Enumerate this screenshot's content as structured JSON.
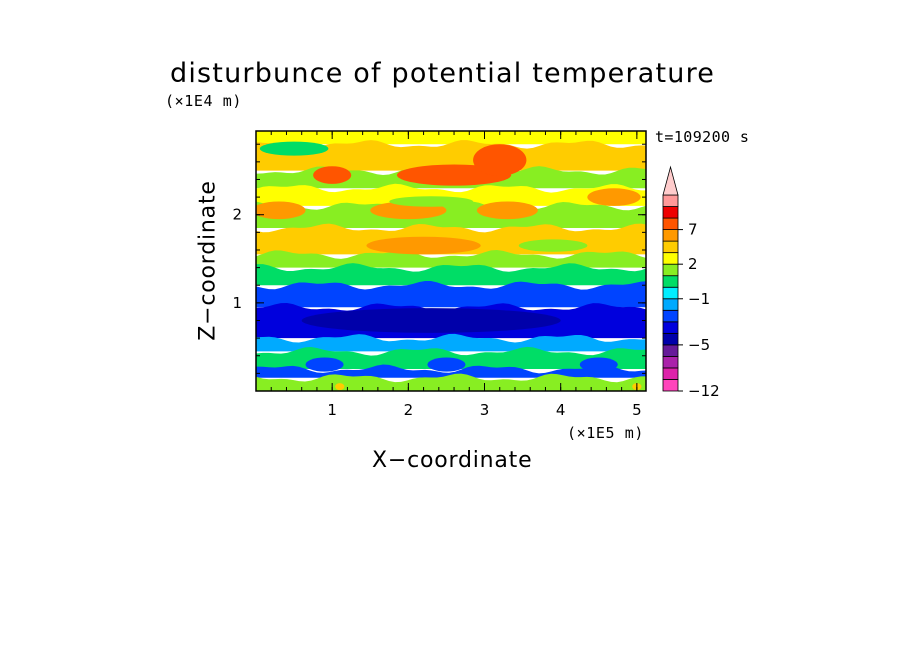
{
  "chart_data": {
    "type": "heatmap",
    "title": "disturbunce of potential temperature",
    "xlabel": "X−coordinate",
    "ylabel": "Z−coordinate",
    "x_multiplier": "(×1E5 m)",
    "y_multiplier": "(×1E4 m)",
    "time_label": "t=109200 s",
    "xlim": [
      0,
      5.12
    ],
    "ylim": [
      0,
      2.95
    ],
    "x_ticks": [
      1,
      2,
      3,
      4,
      5
    ],
    "x_tick_labels": [
      "1",
      "2",
      "3",
      "4",
      "5"
    ],
    "y_ticks": [
      1,
      2
    ],
    "y_tick_labels": [
      "1",
      "2"
    ],
    "grid": false,
    "colorbar": {
      "labels": [
        "−12",
        "−5",
        "−1",
        "2",
        "7"
      ],
      "label_levels": [
        -12,
        -5,
        -1,
        2,
        7
      ],
      "levels": [
        -12,
        -10,
        -8,
        -6,
        -5,
        -4,
        -3,
        -2,
        -1,
        0,
        1,
        2,
        3,
        5,
        7,
        9,
        11
      ],
      "colors": [
        "#ff44bb",
        "#dd22aa",
        "#aa22aa",
        "#661a99",
        "#0000aa",
        "#0000dd",
        "#0044ff",
        "#00aaff",
        "#00eeff",
        "#00dd66",
        "#88ee22",
        "#ffff00",
        "#ffcc00",
        "#ff9900",
        "#ff5500",
        "#ee0000",
        "#ff9999",
        "#ffcccc"
      ],
      "extend": "max"
    },
    "field_rows": [
      {
        "z_top": 2.95,
        "z_bottom": 2.8,
        "value": 1.0,
        "note_value_right": 0.0
      },
      {
        "z_top": 2.8,
        "z_bottom": 2.5,
        "value": 2.5
      },
      {
        "z_top": 2.5,
        "z_bottom": 2.3,
        "value": 0.5
      },
      {
        "z_top": 2.3,
        "z_bottom": 2.1,
        "value": 1.5
      },
      {
        "z_top": 2.1,
        "z_bottom": 1.85,
        "value": 0.5
      },
      {
        "z_top": 1.85,
        "z_bottom": 1.55,
        "value": 2.0
      },
      {
        "z_top": 1.55,
        "z_bottom": 1.4,
        "value": 0.5
      },
      {
        "z_top": 1.4,
        "z_bottom": 1.2,
        "value": -1.0
      },
      {
        "z_top": 1.2,
        "z_bottom": 0.95,
        "value": -3.5
      },
      {
        "z_top": 0.95,
        "z_bottom": 0.6,
        "value": -4.5
      },
      {
        "z_top": 0.6,
        "z_bottom": 0.45,
        "value": -2.5
      },
      {
        "z_top": 0.45,
        "z_bottom": 0.25,
        "value": -1.0
      },
      {
        "z_top": 0.25,
        "z_bottom": 0.15,
        "value": -3.5
      },
      {
        "z_top": 0.15,
        "z_bottom": 0.0,
        "value": 0.5
      }
    ],
    "features": [
      {
        "x": 2.6,
        "z": 2.45,
        "value": 5.0,
        "rx": 0.75,
        "rz": 0.12
      },
      {
        "x": 3.2,
        "z": 2.62,
        "value": 5.0,
        "rx": 0.35,
        "rz": 0.18
      },
      {
        "x": 1.0,
        "z": 2.45,
        "value": 5.0,
        "rx": 0.25,
        "rz": 0.1
      },
      {
        "x": 0.3,
        "z": 2.05,
        "value": 3.0,
        "rx": 0.35,
        "rz": 0.1
      },
      {
        "x": 2.0,
        "z": 2.05,
        "value": 3.0,
        "rx": 0.5,
        "rz": 0.1
      },
      {
        "x": 3.3,
        "z": 2.05,
        "value": 3.0,
        "rx": 0.4,
        "rz": 0.1
      },
      {
        "x": 4.7,
        "z": 2.2,
        "value": 3.0,
        "rx": 0.35,
        "rz": 0.1
      },
      {
        "x": 2.2,
        "z": 1.65,
        "value": 3.0,
        "rx": 0.75,
        "rz": 0.1
      },
      {
        "x": 0.5,
        "z": 2.75,
        "value": -0.5,
        "rx": 0.45,
        "rz": 0.08
      },
      {
        "x": 2.3,
        "z": 2.15,
        "value": 0.5,
        "rx": 0.55,
        "rz": 0.06
      },
      {
        "x": 3.9,
        "z": 1.65,
        "value": 0.5,
        "rx": 0.45,
        "rz": 0.07
      },
      {
        "x": 2.3,
        "z": 0.8,
        "value": -5.5,
        "rx": 1.7,
        "rz": 0.14
      },
      {
        "x": 0.9,
        "z": 0.3,
        "value": -3.5,
        "rx": 0.25,
        "rz": 0.08
      },
      {
        "x": 2.5,
        "z": 0.3,
        "value": -3.5,
        "rx": 0.25,
        "rz": 0.08
      },
      {
        "x": 4.5,
        "z": 0.3,
        "value": -3.5,
        "rx": 0.25,
        "rz": 0.08
      },
      {
        "x": 5.0,
        "z": 0.05,
        "value": 2.5,
        "rx": 0.06,
        "rz": 0.04
      },
      {
        "x": 1.1,
        "z": 0.05,
        "value": 2.5,
        "rx": 0.06,
        "rz": 0.04
      }
    ]
  }
}
